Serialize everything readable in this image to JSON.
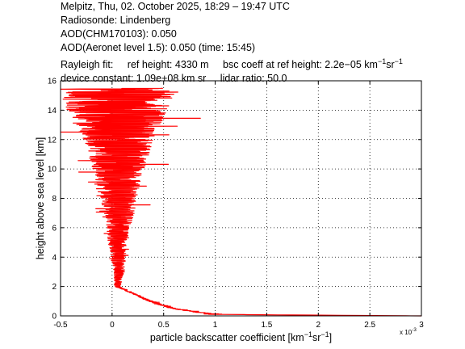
{
  "header": {
    "line1": "Melpitz, Thu, 02. October 2025, 18:29 – 19:47 UTC",
    "line2": "Radiosonde: Lindenberg",
    "line3": "AOD(CHM170103): 0.050",
    "line4": "AOD(Aeronet level 1.5): 0.050   (time: 15:45)",
    "rayleigh_label": "Rayleigh fit:",
    "ref_height": "ref height: 4330 m",
    "bsc_coeff_prefix": "bsc coeff at ref height: 2.2e−05 km",
    "bsc_exp1": "−1",
    "bsc_unit2": "sr",
    "bsc_exp2": "−1",
    "device_constant": "device constant: 1.09e+08 km sr",
    "lidar_ratio": "lidar ratio: 50.0"
  },
  "chart_data": {
    "type": "line",
    "xlabel_main": "particle backscatter coefficient [km",
    "xlabel_exp1": "−1",
    "xlabel_mid": "sr",
    "xlabel_exp2": "−1",
    "xlabel_end": "]",
    "ylabel": "height above sea level [km]",
    "x_multiplier": "x 10",
    "x_multiplier_exp": "-3",
    "xlim": [
      -0.5,
      3
    ],
    "ylim": [
      0,
      16
    ],
    "xticks": [
      "-0.5",
      "0",
      "0.5",
      "1",
      "1.5",
      "2",
      "2.5",
      "3"
    ],
    "yticks": [
      "0",
      "2",
      "4",
      "6",
      "8",
      "10",
      "12",
      "14",
      "16"
    ],
    "grid": true,
    "line_color": "#ff0000",
    "series": [
      {
        "envelope": {
          "y": [
            0,
            0.1,
            0.2,
            0.5,
            0.8,
            1.0,
            1.2,
            1.4,
            1.6,
            1.8,
            1.9,
            2.0,
            2.5,
            3,
            4,
            5,
            6,
            7,
            8,
            9,
            10,
            11,
            12,
            13,
            14,
            15,
            15.5
          ],
          "x_center": [
            3.0,
            1.0,
            0.9,
            0.6,
            0.45,
            0.38,
            0.3,
            0.25,
            0.18,
            0.12,
            0.08,
            0.05,
            0.06,
            0.07,
            0.06,
            0.05,
            0.06,
            0.07,
            0.06,
            0.05,
            0.06,
            0.07,
            0.06,
            0.05,
            0.05,
            0.05,
            0.05
          ],
          "x_spread": [
            0.0,
            0.1,
            0.06,
            0.03,
            0.03,
            0.03,
            0.02,
            0.02,
            0.02,
            0.02,
            0.02,
            0.03,
            0.04,
            0.05,
            0.07,
            0.09,
            0.11,
            0.15,
            0.18,
            0.22,
            0.25,
            0.3,
            0.35,
            0.42,
            0.48,
            0.55,
            0.55
          ]
        }
      }
    ]
  }
}
